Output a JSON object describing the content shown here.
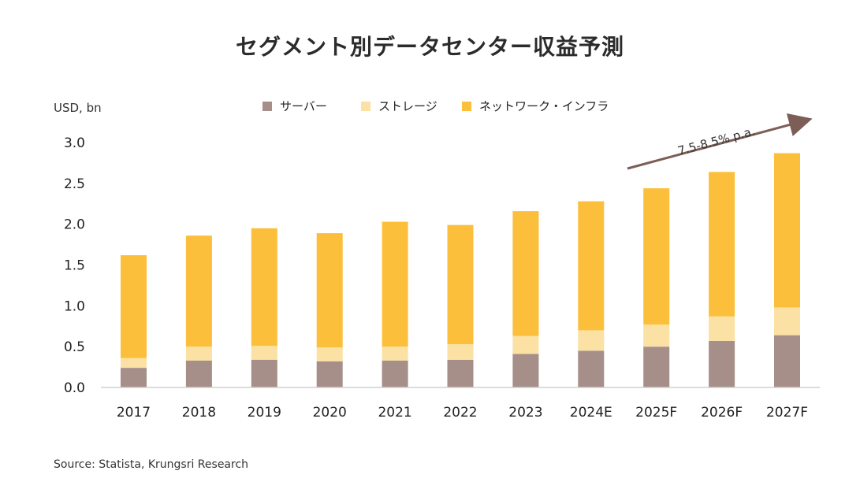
{
  "title": "セグメント別データセンター収益予測",
  "source": "Source: Statista, Krungsri Research",
  "chart_data": {
    "type": "bar",
    "stacked": true,
    "title": "セグメント別データセンター収益予測",
    "ylabel": "USD, bn",
    "xlabel": "",
    "ylim": [
      0,
      3.0
    ],
    "yticks": [
      "0.0",
      "0.5",
      "1.0",
      "1.5",
      "2.0",
      "2.5",
      "3.0"
    ],
    "categories": [
      "2017",
      "2018",
      "2019",
      "2020",
      "2021",
      "2022",
      "2023",
      "2024E",
      "2025F",
      "2026F",
      "2027F"
    ],
    "series": [
      {
        "name": "サーバー",
        "color": "#a58f88",
        "values": [
          0.24,
          0.33,
          0.34,
          0.32,
          0.33,
          0.34,
          0.41,
          0.45,
          0.5,
          0.57,
          0.64
        ]
      },
      {
        "name": "ストレージ",
        "color": "#fbe1a3",
        "values": [
          0.12,
          0.17,
          0.17,
          0.17,
          0.17,
          0.19,
          0.22,
          0.25,
          0.27,
          0.3,
          0.34
        ]
      },
      {
        "name": "ネットワーク・インフラ",
        "color": "#fcbf3b",
        "values": [
          1.26,
          1.36,
          1.44,
          1.4,
          1.53,
          1.46,
          1.53,
          1.58,
          1.67,
          1.77,
          1.89
        ]
      }
    ],
    "annotation": {
      "text": "7.5-8.5% p.a.",
      "color": "#7d5e56"
    },
    "legend_position": "top-center"
  }
}
